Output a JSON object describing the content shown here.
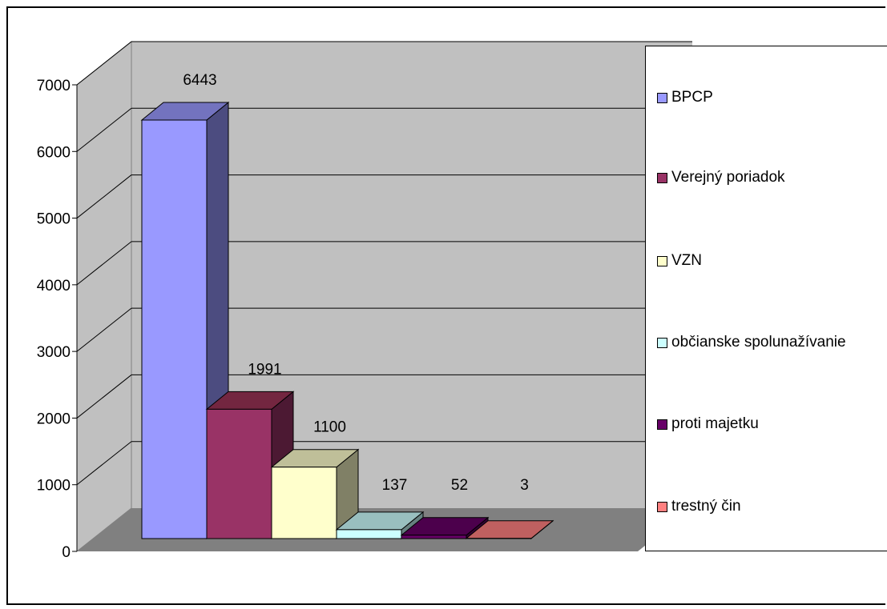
{
  "chart_data": {
    "type": "bar",
    "categories": [
      "BPCP",
      "Verejný poriadok",
      "VZN",
      "občianske spolunažívanie",
      "proti majetku",
      "trestný čin"
    ],
    "values": [
      6443,
      1991,
      1100,
      137,
      52,
      3
    ],
    "ylim": [
      0,
      7000
    ],
    "yticks": [
      "0",
      "1000",
      "2000",
      "3000",
      "4000",
      "5000",
      "6000",
      "7000"
    ],
    "grid": true,
    "three_d": true,
    "legend_position": "right",
    "colors": [
      "#9999ff",
      "#993366",
      "#ffffcc",
      "#ccffff",
      "#660066",
      "#ff8080"
    ],
    "side_colors": [
      "#4c4c80",
      "#4c1933",
      "#808066",
      "#668080",
      "#330033",
      "#804040"
    ],
    "top_colors": [
      "#7373bf",
      "#732640",
      "#bfbf99",
      "#99bfbf",
      "#4c004c",
      "#bf6060"
    ]
  }
}
